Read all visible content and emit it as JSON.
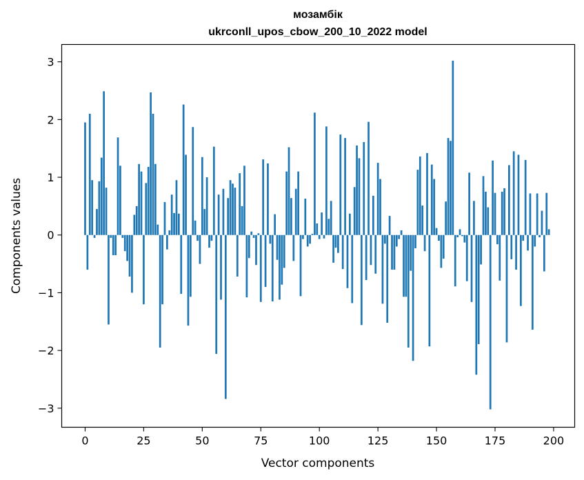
{
  "chart_data": {
    "type": "bar",
    "title": "мозамбік",
    "subtitle": "ukrconll_upos_cbow_200_10_2022 model",
    "xlabel": "Vector components",
    "ylabel": "Components values",
    "xlim": [
      -10,
      209
    ],
    "ylim": [
      -3.33,
      3.3
    ],
    "xticks": [
      0,
      25,
      50,
      75,
      100,
      125,
      150,
      175,
      200
    ],
    "yticks": [
      -3,
      -2,
      -1,
      0,
      1,
      2,
      3
    ],
    "ytick_labels": [
      "−3",
      "−2",
      "−1",
      "0",
      "1",
      "2",
      "3"
    ],
    "grid": false,
    "bar_color": "#1f77b4",
    "values": [
      1.95,
      -0.6,
      2.1,
      0.95,
      -0.05,
      0.45,
      0.93,
      1.34,
      2.49,
      0.82,
      -1.55,
      -0.05,
      -0.35,
      -0.35,
      1.69,
      1.2,
      -0.05,
      -0.28,
      -0.45,
      -0.72,
      -1.0,
      0.35,
      0.5,
      1.23,
      1.1,
      -1.2,
      0.9,
      1.18,
      2.47,
      2.1,
      1.23,
      0.18,
      -1.95,
      -1.2,
      0.57,
      -0.25,
      0.08,
      0.7,
      0.38,
      0.95,
      0.37,
      -1.02,
      2.26,
      1.39,
      -1.57,
      -1.07,
      1.87,
      0.25,
      -0.1,
      -0.5,
      1.35,
      0.45,
      1.0,
      -0.22,
      -0.1,
      1.53,
      -2.06,
      0.7,
      -1.12,
      0.8,
      -2.84,
      0.64,
      0.95,
      0.89,
      0.82,
      -0.72,
      1.07,
      0.5,
      1.2,
      -1.08,
      -0.4,
      0.06,
      -0.05,
      -0.52,
      0.03,
      -1.16,
      1.31,
      -0.9,
      1.24,
      -0.15,
      -1.15,
      0.36,
      -0.43,
      -1.12,
      -0.86,
      -0.57,
      1.1,
      1.52,
      0.64,
      -0.45,
      0.8,
      1.1,
      -1.06,
      -0.07,
      0.63,
      -0.2,
      -0.15,
      0.02,
      2.12,
      0.2,
      -0.07,
      0.39,
      -0.06,
      1.88,
      0.28,
      0.59,
      -0.48,
      -0.22,
      -0.31,
      1.74,
      -0.59,
      1.68,
      -0.92,
      0.37,
      -1.18,
      0.83,
      1.55,
      1.33,
      -1.56,
      1.61,
      -0.78,
      1.96,
      -0.52,
      0.68,
      -0.67,
      1.25,
      0.97,
      -1.19,
      -0.15,
      -1.52,
      0.33,
      -0.6,
      -0.6,
      -0.2,
      -0.07,
      0.08,
      -1.07,
      -1.07,
      -1.95,
      -0.62,
      -2.18,
      -0.23,
      1.13,
      1.36,
      0.51,
      -0.28,
      1.42,
      -1.93,
      1.22,
      0.97,
      0.12,
      -0.1,
      -0.57,
      -0.41,
      0.58,
      1.68,
      1.63,
      3.02,
      -0.89,
      -0.04,
      0.1,
      -0.02,
      -0.13,
      -0.8,
      1.08,
      -1.16,
      0.59,
      -2.42,
      -1.89,
      -0.51,
      1.02,
      0.75,
      0.48,
      -3.02,
      1.29,
      0.73,
      -0.16,
      -0.79,
      0.75,
      0.81,
      -1.86,
      1.21,
      -0.42,
      1.45,
      -0.6,
      1.39,
      -1.23,
      -0.1,
      1.3,
      -0.27,
      0.72,
      -1.64,
      -0.2,
      0.72,
      -0.04,
      0.42,
      -0.63,
      0.73,
      0.1
    ]
  }
}
